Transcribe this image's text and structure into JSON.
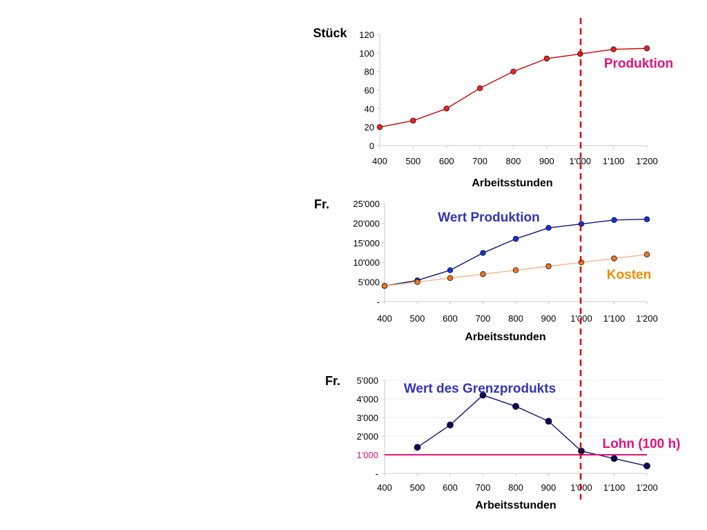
{
  "chart_data": [
    {
      "type": "line",
      "ylabel": "Stück",
      "xlabel": "Arbeitsstunden",
      "x_ticks": [
        "400",
        "500",
        "600",
        "700",
        "800",
        "900",
        "1'000",
        "1'100",
        "1'200"
      ],
      "y_ticks": [
        "0",
        "20",
        "40",
        "60",
        "80",
        "100",
        "120"
      ],
      "ylim": [
        0,
        120
      ],
      "series": [
        {
          "name": "Produktion",
          "color": "#e4117a",
          "line_color": "#cc0000",
          "marker_color": "#ee2222",
          "x": [
            400,
            500,
            600,
            700,
            800,
            900,
            1000,
            1100,
            1200
          ],
          "values": [
            20,
            27,
            40,
            62,
            80,
            94,
            99,
            104,
            105
          ]
        }
      ]
    },
    {
      "type": "line",
      "ylabel": "Fr.",
      "xlabel": "Arbeitsstunden",
      "x_ticks": [
        "400",
        "500",
        "600",
        "700",
        "800",
        "900",
        "1'000",
        "1'100",
        "1'200"
      ],
      "y_ticks": [
        "-",
        "5'000",
        "10'000",
        "15'000",
        "20'000",
        "25'000"
      ],
      "ylim": [
        0,
        25000
      ],
      "series": [
        {
          "name": "Wert Produktion",
          "color": "#3333bb",
          "line_color": "#111177",
          "marker_color": "#1133dd",
          "x": [
            400,
            500,
            600,
            700,
            800,
            900,
            1000,
            1100,
            1200
          ],
          "values": [
            4000,
            5400,
            8000,
            12400,
            16000,
            18800,
            19800,
            20800,
            21000
          ]
        },
        {
          "name": "Kosten",
          "color": "#f08c00",
          "line_color": "#f4b48c",
          "marker_color": "#f07820",
          "x": [
            400,
            500,
            600,
            700,
            800,
            900,
            1000,
            1100,
            1200
          ],
          "values": [
            4000,
            5000,
            6000,
            7000,
            8000,
            9000,
            10000,
            11000,
            12000
          ]
        }
      ]
    },
    {
      "type": "line",
      "ylabel": "Fr.",
      "xlabel": "Arbeitsstunden",
      "x_ticks": [
        "400",
        "500",
        "600",
        "700",
        "800",
        "900",
        "1'000",
        "1'100",
        "1'200"
      ],
      "y_ticks": [
        "-",
        "1'000",
        "2'000",
        "3'000",
        "4'000",
        "5'000"
      ],
      "ylim": [
        0,
        5000
      ],
      "series": [
        {
          "name": "Wert des Grenzprodukts",
          "color": "#3333bb",
          "line_color": "#111177",
          "marker_color": "#0a0a55",
          "x": [
            500,
            600,
            700,
            800,
            900,
            1000,
            1100,
            1200
          ],
          "values": [
            1400,
            2600,
            4200,
            3600,
            2800,
            1200,
            800,
            400
          ]
        },
        {
          "name": "Lohn (100 h)",
          "color": "#e4117a",
          "line_color": "#e4117a",
          "x": [
            400,
            1200
          ],
          "values": [
            1000,
            1000
          ]
        }
      ],
      "highlight_tick": {
        "label": "1'000",
        "color": "#e4117a"
      }
    }
  ],
  "reference_line": {
    "x": 1000,
    "color": "#e00000",
    "style": "dashed"
  }
}
